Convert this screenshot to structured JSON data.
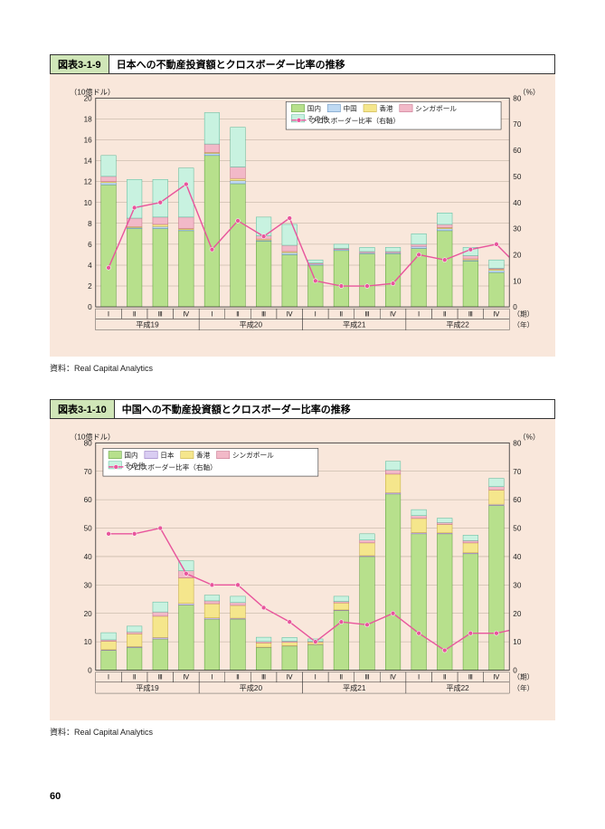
{
  "page_number": "60",
  "figures": [
    {
      "number_label": "図表3-1-9",
      "title": "日本への不動産投資額とクロスボーダー比率の推移",
      "y_left_label": "（10億ドル）",
      "y_right_label": "（%）",
      "x_sub_label_right": "（期）",
      "x_year_label_right": "（年）",
      "y_left_max": 20,
      "y_left_step": 2,
      "y_right_max": 80,
      "y_right_step": 10,
      "colors": {
        "bg": "#f9e7db",
        "grid": "#b8a89a",
        "axis": "#333333",
        "text": "#222222"
      },
      "legend": {
        "series": [
          {
            "name": "国内",
            "color": "#b7e08c",
            "border": "#5a9c3a"
          },
          {
            "name": "中国",
            "color": "#bfd9f2",
            "border": "#5a88b8"
          },
          {
            "name": "香港",
            "color": "#f5e68c",
            "border": "#c0a83a"
          },
          {
            "name": "シンガポール",
            "color": "#f2b9c8",
            "border": "#c06a85"
          },
          {
            "name": "その他",
            "color": "#c8f2e0",
            "border": "#5ab89a"
          }
        ],
        "line": {
          "name": "クロスボーダー比率（右軸）",
          "color": "#e8559c",
          "marker": "#e8559c"
        }
      },
      "years": [
        "平成19",
        "平成20",
        "平成21",
        "平成22"
      ],
      "quarters": [
        "Ⅰ",
        "Ⅱ",
        "Ⅲ",
        "Ⅳ"
      ],
      "data": [
        {
          "stack": [
            11.7,
            0.2,
            0.1,
            0.5,
            2.0
          ],
          "ratio": 15
        },
        {
          "stack": [
            7.5,
            0.1,
            0.1,
            0.8,
            3.7
          ],
          "ratio": 38
        },
        {
          "stack": [
            7.5,
            0.2,
            0.2,
            0.7,
            3.6
          ],
          "ratio": 40
        },
        {
          "stack": [
            7.3,
            0.1,
            0.1,
            1.1,
            4.7
          ],
          "ratio": 47
        },
        {
          "stack": [
            14.5,
            0.2,
            0.1,
            0.8,
            3.0
          ],
          "ratio": 22
        },
        {
          "stack": [
            11.8,
            0.3,
            0.2,
            1.1,
            3.8
          ],
          "ratio": 33
        },
        {
          "stack": [
            6.3,
            0.1,
            0.1,
            0.3,
            1.8
          ],
          "ratio": 27
        },
        {
          "stack": [
            5.0,
            0.2,
            0.1,
            0.6,
            2.0
          ],
          "ratio": 34
        },
        {
          "stack": [
            4.0,
            0.1,
            0.0,
            0.1,
            0.3
          ],
          "ratio": 10
        },
        {
          "stack": [
            5.4,
            0.1,
            0.0,
            0.1,
            0.4
          ],
          "ratio": 8
        },
        {
          "stack": [
            5.1,
            0.1,
            0.0,
            0.1,
            0.4
          ],
          "ratio": 8
        },
        {
          "stack": [
            5.1,
            0.1,
            0.0,
            0.1,
            0.4
          ],
          "ratio": 9
        },
        {
          "stack": [
            5.6,
            0.2,
            0.0,
            0.2,
            1.0
          ],
          "ratio": 20
        },
        {
          "stack": [
            7.3,
            0.2,
            0.1,
            0.3,
            1.1
          ],
          "ratio": 18
        },
        {
          "stack": [
            4.4,
            0.1,
            0.1,
            0.3,
            0.8
          ],
          "ratio": 22
        },
        {
          "stack": [
            3.3,
            0.2,
            0.1,
            0.1,
            0.8
          ],
          "ratio": 24
        }
      ],
      "final_ratio_tail": 19,
      "source": "資料：Real Capital Analytics"
    },
    {
      "number_label": "図表3-1-10",
      "title": "中国への不動産投資額とクロスボーダー比率の推移",
      "y_left_label": "（10億ドル）",
      "y_right_label": "（%）",
      "x_sub_label_right": "（期）",
      "x_year_label_right": "（年）",
      "y_left_max": 80,
      "y_left_step": 10,
      "y_right_max": 80,
      "y_right_step": 10,
      "colors": {
        "bg": "#f9e7db",
        "grid": "#b8a89a",
        "axis": "#333333",
        "text": "#222222"
      },
      "legend": {
        "series": [
          {
            "name": "国内",
            "color": "#b7e08c",
            "border": "#5a9c3a"
          },
          {
            "name": "日本",
            "color": "#d9cdf2",
            "border": "#8a6ab8"
          },
          {
            "name": "香港",
            "color": "#f5e68c",
            "border": "#c0a83a"
          },
          {
            "name": "シンガポール",
            "color": "#f2b9c8",
            "border": "#c06a85"
          },
          {
            "name": "その他",
            "color": "#c8f2e0",
            "border": "#5ab89a"
          }
        ],
        "line": {
          "name": "クロスボーダー比率（右軸）",
          "color": "#e8559c",
          "marker": "#e8559c"
        }
      },
      "years": [
        "平成19",
        "平成20",
        "平成21",
        "平成22"
      ],
      "quarters": [
        "Ⅰ",
        "Ⅱ",
        "Ⅲ",
        "Ⅳ"
      ],
      "data": [
        {
          "stack": [
            7.0,
            0.2,
            3.0,
            0.5,
            2.5
          ],
          "ratio": 48
        },
        {
          "stack": [
            8.0,
            0.3,
            4.5,
            0.7,
            2.0
          ],
          "ratio": 48
        },
        {
          "stack": [
            11.0,
            0.5,
            7.5,
            1.5,
            3.5
          ],
          "ratio": 50
        },
        {
          "stack": [
            23.0,
            0.5,
            9.0,
            2.5,
            3.5
          ],
          "ratio": 34
        },
        {
          "stack": [
            18.0,
            0.4,
            5.0,
            1.0,
            2.0
          ],
          "ratio": 30
        },
        {
          "stack": [
            18.0,
            0.3,
            4.5,
            1.0,
            2.2
          ],
          "ratio": 30
        },
        {
          "stack": [
            8.0,
            0.1,
            1.5,
            0.5,
            1.5
          ],
          "ratio": 22
        },
        {
          "stack": [
            8.5,
            0.1,
            1.2,
            0.4,
            1.3
          ],
          "ratio": 17
        },
        {
          "stack": [
            9.0,
            0.1,
            0.8,
            0.2,
            0.9
          ],
          "ratio": 10
        },
        {
          "stack": [
            21.0,
            0.2,
            2.5,
            0.5,
            1.8
          ],
          "ratio": 17
        },
        {
          "stack": [
            40.0,
            0.3,
            4.5,
            1.0,
            2.2
          ],
          "ratio": 16
        },
        {
          "stack": [
            62.0,
            0.5,
            6.5,
            1.5,
            3.0
          ],
          "ratio": 20
        },
        {
          "stack": [
            48.0,
            0.4,
            5.0,
            1.0,
            2.1
          ],
          "ratio": 13
        },
        {
          "stack": [
            48.0,
            0.3,
            3.0,
            0.7,
            1.5
          ],
          "ratio": 7
        },
        {
          "stack": [
            41.0,
            0.3,
            3.5,
            0.8,
            1.9
          ],
          "ratio": 13
        },
        {
          "stack": [
            58.0,
            0.4,
            5.0,
            1.2,
            2.9
          ],
          "ratio": 13
        }
      ],
      "final_ratio_tail": 14,
      "source": "資料：Real Capital Analytics"
    }
  ]
}
